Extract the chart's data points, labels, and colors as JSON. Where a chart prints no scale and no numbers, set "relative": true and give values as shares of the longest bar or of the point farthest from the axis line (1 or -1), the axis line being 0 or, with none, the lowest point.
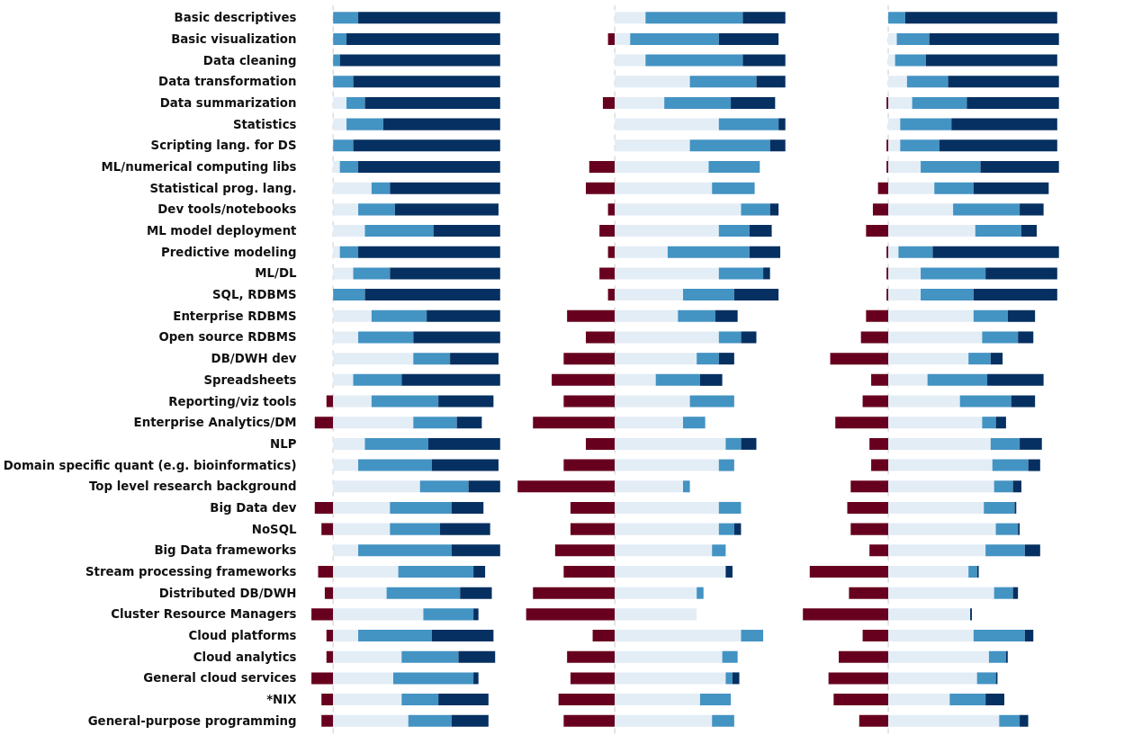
{
  "chart_data": [
    {
      "type": "bar",
      "orientation": "horizontal",
      "stacked": true,
      "relative": true,
      "tick_labels": "y",
      "categories": [
        "Basic descriptives",
        "Basic visualization",
        "Data cleaning",
        "Data transformation",
        "Data summarization",
        "Statistics",
        "Scripting lang. for DS",
        "ML/numerical computing libs",
        "Statistical prog. lang.",
        "Dev tools/notebooks",
        "ML model deployment",
        "Predictive modeling",
        "ML/DL",
        "SQL, RDBMS",
        "Enterprise RDBMS",
        "Open source RDBMS",
        "DB/DWH dev",
        "Spreadsheets",
        "Reporting/viz tools",
        "Enterprise Analytics/DM",
        "NLP",
        "Domain specific quant (e.g. bioinformatics)",
        "Top level research background",
        "Big Data dev",
        "NoSQL",
        "Big Data frameworks",
        "Stream processing frameworks",
        "Distributed DB/DWH",
        "Cluster Resource Managers",
        "Cloud platforms",
        "Cloud analytics",
        "General cloud services",
        "*NIX",
        "General-purpose programming"
      ],
      "ref_lines": [
        {
          "axis": "x",
          "value": 0,
          "color": "#dddddd",
          "line_style": "dashed"
        }
      ],
      "series": [
        {
          "color": "#67001f",
          "values": [
            null,
            null,
            null,
            null,
            null,
            null,
            null,
            null,
            null,
            null,
            null,
            null,
            null,
            null,
            null,
            null,
            null,
            null,
            -0.04,
            -0.11,
            null,
            null,
            null,
            -0.11,
            -0.07,
            null,
            -0.09,
            -0.05,
            -0.13,
            -0.04,
            -0.04,
            -0.13,
            -0.07,
            -0.07
          ]
        },
        {
          "color": "#e3edf6",
          "values": [
            null,
            null,
            null,
            null,
            0.08,
            0.08,
            null,
            0.04,
            0.23,
            0.15,
            0.19,
            0.04,
            0.12,
            null,
            0.23,
            0.15,
            0.48,
            0.12,
            0.23,
            0.48,
            0.19,
            0.15,
            0.52,
            0.34,
            0.34,
            0.15,
            0.39,
            0.32,
            0.54,
            0.15,
            0.41,
            0.36,
            0.41,
            0.45
          ]
        },
        {
          "color": "#4393c3",
          "values": [
            0.15,
            0.08,
            0.04,
            0.12,
            0.11,
            0.22,
            0.12,
            0.11,
            0.11,
            0.22,
            0.41,
            0.11,
            0.22,
            0.19,
            0.33,
            0.33,
            0.22,
            0.29,
            0.4,
            0.26,
            0.38,
            0.44,
            0.29,
            0.37,
            0.3,
            0.56,
            0.45,
            0.44,
            0.3,
            0.44,
            0.34,
            0.48,
            0.22,
            0.26
          ]
        },
        {
          "color": "#053061",
          "values": [
            0.85,
            0.92,
            0.96,
            0.88,
            0.81,
            0.7,
            0.88,
            0.85,
            0.66,
            0.62,
            0.4,
            0.85,
            0.66,
            0.81,
            0.44,
            0.52,
            0.29,
            0.59,
            0.33,
            0.15,
            0.43,
            0.4,
            0.19,
            0.19,
            0.3,
            0.29,
            0.07,
            0.19,
            0.03,
            0.37,
            0.22,
            0.03,
            0.3,
            0.22
          ]
        }
      ]
    },
    {
      "type": "bar",
      "orientation": "horizontal",
      "stacked": true,
      "relative": true,
      "tick_labels": false,
      "categories": [
        null,
        null,
        null,
        null,
        null,
        null,
        null,
        null,
        null,
        null,
        null,
        null,
        null,
        null,
        null,
        null,
        null,
        null,
        null,
        null,
        null,
        null,
        null,
        null,
        null,
        null,
        null,
        null,
        null,
        null,
        null,
        null,
        null,
        null
      ],
      "ref_lines": [
        {
          "axis": "x",
          "value": 0,
          "color": "#dddddd",
          "line_style": "dashed"
        }
      ],
      "series": [
        {
          "color": "#67001f",
          "values": [
            null,
            -0.04,
            null,
            null,
            -0.07,
            null,
            null,
            -0.15,
            -0.17,
            -0.04,
            -0.09,
            -0.04,
            -0.09,
            -0.04,
            -0.28,
            -0.17,
            -0.3,
            -0.37,
            -0.3,
            -0.48,
            -0.17,
            -0.3,
            -0.57,
            -0.26,
            -0.26,
            -0.35,
            -0.3,
            -0.48,
            -0.52,
            -0.13,
            -0.28,
            -0.26,
            -0.33,
            -0.3
          ]
        },
        {
          "color": "#e3edf6",
          "values": [
            0.18,
            0.09,
            0.18,
            0.44,
            0.29,
            0.61,
            0.44,
            0.55,
            0.57,
            0.74,
            0.61,
            0.31,
            0.61,
            0.4,
            0.37,
            0.61,
            0.48,
            0.24,
            0.44,
            0.4,
            0.65,
            0.61,
            0.4,
            0.61,
            0.61,
            0.57,
            0.65,
            0.48,
            0.48,
            0.74,
            0.63,
            0.65,
            0.5,
            0.57
          ]
        },
        {
          "color": "#4393c3",
          "values": [
            0.57,
            0.52,
            0.57,
            0.39,
            0.39,
            0.35,
            0.47,
            0.3,
            0.25,
            0.17,
            0.18,
            0.48,
            0.26,
            0.3,
            0.22,
            0.13,
            0.13,
            0.26,
            0.26,
            0.13,
            0.09,
            0.09,
            0.04,
            0.13,
            0.09,
            0.08,
            null,
            0.04,
            null,
            0.13,
            0.09,
            0.04,
            0.18,
            0.13
          ]
        },
        {
          "color": "#053061",
          "values": [
            0.25,
            0.35,
            0.25,
            0.17,
            0.26,
            0.04,
            0.09,
            null,
            null,
            0.05,
            0.13,
            0.18,
            0.04,
            0.26,
            0.13,
            0.09,
            0.09,
            0.13,
            null,
            null,
            0.09,
            null,
            null,
            null,
            0.04,
            null,
            0.04,
            null,
            null,
            null,
            null,
            0.04,
            null,
            null
          ]
        }
      ]
    },
    {
      "type": "bar",
      "orientation": "horizontal",
      "stacked": true,
      "relative": true,
      "tick_labels": false,
      "categories": [
        null,
        null,
        null,
        null,
        null,
        null,
        null,
        null,
        null,
        null,
        null,
        null,
        null,
        null,
        null,
        null,
        null,
        null,
        null,
        null,
        null,
        null,
        null,
        null,
        null,
        null,
        null,
        null,
        null,
        null,
        null,
        null,
        null,
        null
      ],
      "ref_lines": [
        {
          "axis": "x",
          "value": 0,
          "color": "#dddddd",
          "line_style": "dashed"
        }
      ],
      "series": [
        {
          "color": "#67001f",
          "values": [
            null,
            null,
            null,
            null,
            -0.01,
            null,
            -0.01,
            -0.01,
            -0.06,
            -0.09,
            -0.13,
            -0.01,
            -0.01,
            -0.01,
            -0.13,
            -0.16,
            -0.34,
            -0.1,
            -0.15,
            -0.31,
            -0.11,
            -0.1,
            -0.22,
            -0.24,
            -0.22,
            -0.11,
            -0.46,
            -0.23,
            -0.5,
            -0.15,
            -0.29,
            -0.35,
            -0.32,
            -0.17
          ]
        },
        {
          "color": "#e3edf6",
          "values": [
            null,
            0.05,
            0.04,
            0.11,
            0.14,
            0.07,
            0.07,
            0.19,
            0.27,
            0.38,
            0.51,
            0.06,
            0.19,
            0.19,
            0.5,
            0.55,
            0.47,
            0.23,
            0.42,
            0.55,
            0.6,
            0.61,
            0.62,
            0.56,
            0.63,
            0.57,
            0.47,
            0.62,
            0.48,
            0.5,
            0.59,
            0.52,
            0.36,
            0.65
          ]
        },
        {
          "color": "#4393c3",
          "values": [
            0.1,
            0.19,
            0.18,
            0.24,
            0.32,
            0.3,
            0.23,
            0.35,
            0.23,
            0.39,
            0.27,
            0.2,
            0.38,
            0.31,
            0.2,
            0.21,
            0.13,
            0.35,
            0.3,
            0.08,
            0.17,
            0.21,
            0.11,
            0.18,
            0.13,
            0.23,
            0.05,
            0.11,
            null,
            0.3,
            0.1,
            0.11,
            0.21,
            0.12
          ]
        },
        {
          "color": "#053061",
          "values": [
            0.89,
            0.76,
            0.77,
            0.65,
            0.54,
            0.62,
            0.69,
            0.46,
            0.44,
            0.14,
            0.09,
            0.74,
            0.42,
            0.49,
            0.16,
            0.09,
            0.07,
            0.33,
            0.14,
            0.06,
            0.13,
            0.07,
            0.05,
            0.01,
            0.01,
            0.09,
            0.01,
            0.03,
            0.01,
            0.05,
            0.01,
            0.01,
            0.11,
            0.05
          ]
        }
      ]
    }
  ]
}
